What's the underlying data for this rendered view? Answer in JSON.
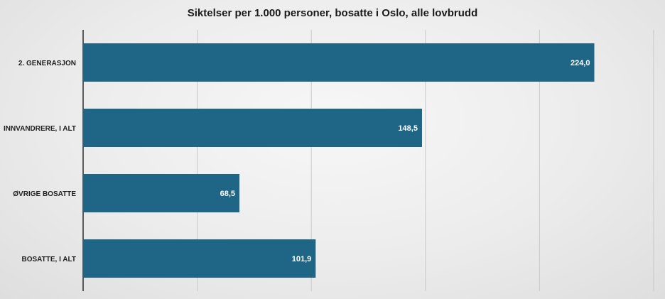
{
  "chart_data": {
    "type": "bar",
    "orientation": "horizontal",
    "title": "Siktelser per 1.000 personer, bosatte i Oslo, alle lovbrudd",
    "categories": [
      "2. GENERASJON",
      "INNVANDRERE, I ALT",
      "ØVRIGE BOSATTE",
      "BOSATTE, I ALT"
    ],
    "values": [
      224.0,
      148.5,
      68.5,
      101.9
    ],
    "value_labels": [
      "224,0",
      "148,5",
      "68,5",
      "101,9"
    ],
    "xlim": [
      0,
      250
    ],
    "gridlines": true,
    "bar_color": "#1f6585"
  }
}
